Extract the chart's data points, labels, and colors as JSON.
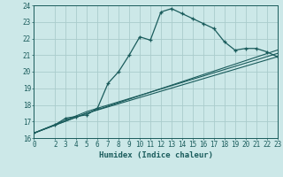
{
  "xlabel": "Humidex (Indice chaleur)",
  "bg_color": "#cce8e8",
  "grid_color": "#aacccc",
  "line_color": "#1a5c5c",
  "xlim": [
    0,
    23
  ],
  "ylim": [
    16,
    24
  ],
  "yticks": [
    16,
    17,
    18,
    19,
    20,
    21,
    22,
    23,
    24
  ],
  "xticks": [
    0,
    2,
    3,
    4,
    5,
    6,
    7,
    8,
    9,
    10,
    11,
    12,
    13,
    14,
    15,
    16,
    17,
    18,
    19,
    20,
    21,
    22,
    23
  ],
  "curve1_x": [
    0,
    2,
    3,
    4,
    5,
    6,
    7,
    8,
    9,
    10,
    11,
    12,
    13,
    14,
    15,
    16,
    17,
    18,
    19,
    20,
    21,
    22,
    23
  ],
  "curve1_y": [
    16.3,
    16.8,
    17.2,
    17.3,
    17.4,
    17.8,
    19.3,
    20.0,
    21.0,
    22.1,
    21.9,
    23.6,
    23.8,
    23.5,
    23.2,
    22.9,
    22.6,
    21.8,
    21.3,
    21.4,
    21.4,
    21.2,
    20.9
  ],
  "curve2_x": [
    0,
    5,
    23
  ],
  "curve2_y": [
    16.3,
    17.5,
    20.9
  ],
  "curve3_x": [
    0,
    5,
    23
  ],
  "curve3_y": [
    16.3,
    17.5,
    21.3
  ],
  "curve4_x": [
    0,
    5,
    23
  ],
  "curve4_y": [
    16.3,
    17.6,
    21.1
  ],
  "xlabel_fontsize": 6.5,
  "tick_fontsize": 5.5
}
